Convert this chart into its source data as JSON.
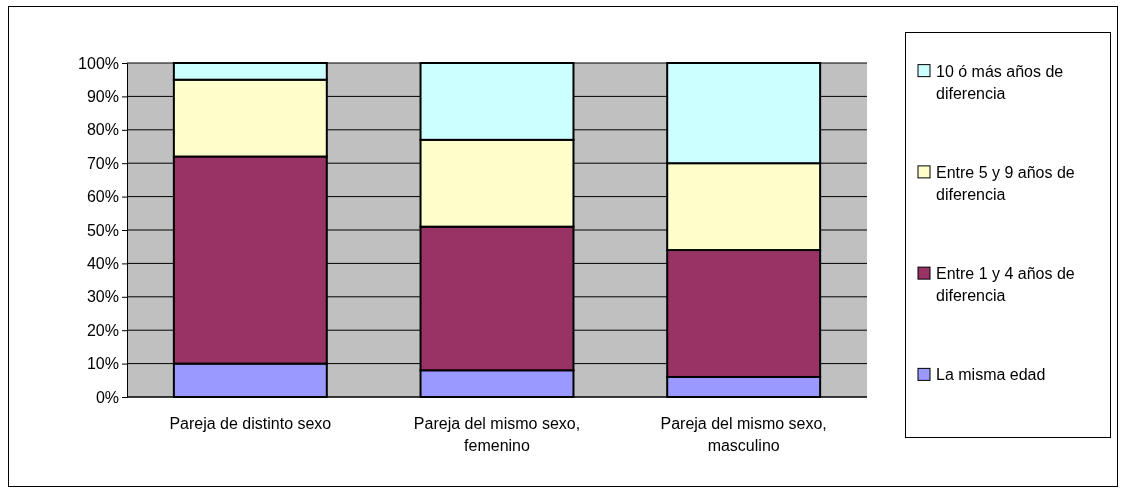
{
  "chart_data": {
    "type": "bar",
    "stacked": true,
    "categories": [
      "Pareja de distinto sexo",
      "Pareja del mismo sexo, femenino",
      "Pareja del mismo sexo, masculino"
    ],
    "series": [
      {
        "name": "La misma edad",
        "color": "#9999ff",
        "values": [
          10,
          8,
          6
        ]
      },
      {
        "name": "Entre 1 y 4 años de diferencia",
        "color": "#993366",
        "values": [
          62,
          43,
          38
        ]
      },
      {
        "name": "Entre 5 y 9 años de diferencia",
        "color": "#ffffcc",
        "values": [
          23,
          26,
          26
        ]
      },
      {
        "name": "10 ó más años de diferencia",
        "color": "#ccffff",
        "values": [
          5,
          23,
          30
        ]
      }
    ],
    "ylim": [
      0,
      100
    ],
    "yticks": [
      {
        "value": 0,
        "label": "0%"
      },
      {
        "value": 10,
        "label": "10%"
      },
      {
        "value": 20,
        "label": "20%"
      },
      {
        "value": 30,
        "label": "30%"
      },
      {
        "value": 40,
        "label": "40%"
      },
      {
        "value": 50,
        "label": "50%"
      },
      {
        "value": 60,
        "label": "60%"
      },
      {
        "value": 70,
        "label": "70%"
      },
      {
        "value": 80,
        "label": "80%"
      },
      {
        "value": 90,
        "label": "90%"
      },
      {
        "value": 100,
        "label": "100%"
      }
    ],
    "grid": "y",
    "legend": "right"
  }
}
